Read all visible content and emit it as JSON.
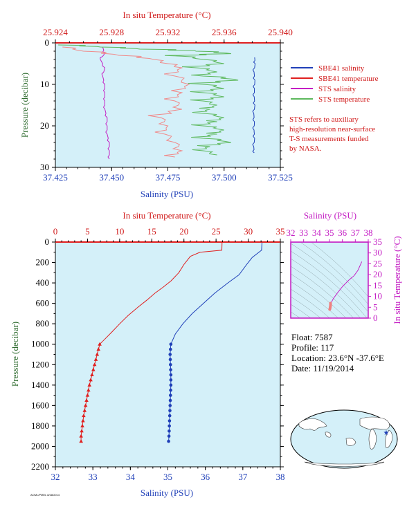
{
  "colors": {
    "salinity": "#1f3fb8",
    "temperature": "#e01f1f",
    "sts_salinity": "#c41fc4",
    "sts_temperature": "#5cb85c",
    "plot_bg": "#d4f0f9",
    "pressure_axis": "#2e6b2e",
    "red_text": "#d01818",
    "magenta_text": "#c41fc4",
    "blue_text": "#1f3fb8"
  },
  "legend": {
    "items": [
      {
        "label": "SBE41 salinity",
        "color": "#1f3fb8"
      },
      {
        "label": "SBE41 temperature",
        "color": "#e01f1f"
      },
      {
        "label": "STS salinity",
        "color": "#c41fc4"
      },
      {
        "label": "STS temperature",
        "color": "#5cb85c"
      }
    ],
    "note": [
      "STS refers to auxiliary",
      "high-resolution near-surface",
      "T-S measurements funded",
      "by NASA."
    ]
  },
  "info": {
    "float": "Float:  7587",
    "profile": "Profile:  117",
    "location": "Location:  23.6°N  -37.6°E",
    "date": "Date:  11/19/2014"
  },
  "footer": "AOML/PMEL 8/28/2014",
  "chart_data": [
    {
      "type": "line",
      "name": "near-surface",
      "top_axis_label": "In situ Temperature (°C)",
      "bottom_axis_label": "Salinity (PSU)",
      "y_axis_label": "Pressure (decibar)",
      "temp_ticks": [
        "25.924",
        "25.928",
        "25.932",
        "25.936",
        "25.940"
      ],
      "sal_ticks": [
        "37.425",
        "37.450",
        "37.475",
        "37.500",
        "37.525"
      ],
      "pres_ticks": [
        "0",
        "10",
        "20",
        "30"
      ],
      "temp_range": [
        25.924,
        25.94
      ],
      "sal_range": [
        37.425,
        37.525
      ],
      "pres_range": [
        0,
        30
      ],
      "series": [
        {
          "name": "SBE41 salinity",
          "color": "#1f3fb8",
          "axis": "salinity",
          "points": [
            [
              37.5136,
              3.5
            ],
            [
              37.5138,
              5
            ],
            [
              37.5133,
              7
            ],
            [
              37.5137,
              9
            ],
            [
              37.5135,
              11
            ],
            [
              37.5134,
              13
            ],
            [
              37.5137,
              15
            ],
            [
              37.5132,
              17
            ],
            [
              37.5135,
              19
            ],
            [
              37.5133,
              21
            ],
            [
              37.5136,
              23
            ],
            [
              37.5132,
              25
            ],
            [
              37.5134,
              26.5
            ]
          ]
        },
        {
          "name": "STS salinity",
          "color": "#c41fc4",
          "axis": "salinity",
          "points": [
            [
              37.446,
              1
            ],
            [
              37.447,
              2.5
            ],
            [
              37.445,
              4
            ],
            [
              37.447,
              6
            ],
            [
              37.446,
              8
            ],
            [
              37.447,
              10
            ],
            [
              37.447,
              12
            ],
            [
              37.447,
              14
            ],
            [
              37.447,
              16
            ],
            [
              37.448,
              18
            ],
            [
              37.448,
              20
            ],
            [
              37.448,
              22
            ],
            [
              37.449,
              24
            ],
            [
              37.449,
              26
            ],
            [
              37.449,
              28
            ]
          ]
        },
        {
          "name": "STS temperature",
          "color": "#5cb85c",
          "axis": "temperature",
          "points": [
            [
              25.9242,
              0.5
            ],
            [
              25.9272,
              1
            ],
            [
              25.93,
              1.5
            ],
            [
              25.934,
              2
            ],
            [
              25.9365,
              2.6
            ],
            [
              25.933,
              3.2
            ],
            [
              25.9345,
              4
            ],
            [
              25.936,
              5
            ],
            [
              25.934,
              6
            ],
            [
              25.9355,
              7
            ],
            [
              25.9345,
              8
            ],
            [
              25.937,
              9
            ],
            [
              25.9345,
              10
            ],
            [
              25.936,
              11
            ],
            [
              25.9345,
              12
            ],
            [
              25.936,
              13
            ],
            [
              25.9345,
              14
            ],
            [
              25.9355,
              15
            ],
            [
              25.935,
              16
            ],
            [
              25.9345,
              17
            ],
            [
              25.936,
              18
            ],
            [
              25.9355,
              19
            ],
            [
              25.9345,
              20
            ],
            [
              25.936,
              21
            ],
            [
              25.9355,
              22
            ],
            [
              25.9345,
              23
            ],
            [
              25.9365,
              24
            ],
            [
              25.935,
              25
            ],
            [
              25.9345,
              26
            ],
            [
              25.9355,
              27
            ]
          ]
        },
        {
          "name": "SBE41 temperature",
          "color": "#e01f1f",
          "axis": "temperature",
          "points": [
            [
              25.9245,
              1
            ],
            [
              25.926,
              2
            ],
            [
              25.9285,
              3
            ],
            [
              25.931,
              4
            ],
            [
              25.932,
              5
            ],
            [
              25.933,
              6
            ],
            [
              25.9325,
              8
            ],
            [
              25.9335,
              10
            ],
            [
              25.933,
              12
            ],
            [
              25.9325,
              14
            ],
            [
              25.933,
              16
            ],
            [
              25.9315,
              18
            ],
            [
              25.932,
              20
            ],
            [
              25.9318,
              22
            ],
            [
              25.9325,
              24
            ],
            [
              25.933,
              26
            ],
            [
              25.9325,
              27.5
            ]
          ]
        }
      ]
    },
    {
      "type": "line",
      "name": "full-profile",
      "top_axis_label": "In situ Temperature (°C)",
      "bottom_axis_label": "Salinity (PSU)",
      "y_axis_label": "Pressure (decibar)",
      "temp_ticks": [
        "0",
        "5",
        "10",
        "15",
        "20",
        "25",
        "30",
        "35"
      ],
      "sal_ticks": [
        "32",
        "33",
        "34",
        "35",
        "36",
        "37",
        "38"
      ],
      "pres_ticks": [
        "0",
        "200",
        "400",
        "600",
        "800",
        "1000",
        "1200",
        "1400",
        "1600",
        "1800",
        "2000",
        "2200"
      ],
      "temp_range": [
        0,
        35
      ],
      "sal_range": [
        32,
        38
      ],
      "pres_range": [
        0,
        2200
      ],
      "series": [
        {
          "name": "temperature",
          "color": "#e01f1f",
          "axis": "temperature",
          "points": [
            [
              25.93,
              5
            ],
            [
              25.9,
              80
            ],
            [
              22.5,
              100
            ],
            [
              21,
              140
            ],
            [
              20,
              220
            ],
            [
              19.2,
              300
            ],
            [
              18,
              380
            ],
            [
              16.8,
              440
            ],
            [
              15.5,
              500
            ],
            [
              14.2,
              570
            ],
            [
              12.8,
              640
            ],
            [
              11.3,
              720
            ],
            [
              10,
              800
            ],
            [
              8.8,
              880
            ],
            [
              7.7,
              950
            ],
            [
              6.9,
              1000
            ],
            [
              6.5,
              1100
            ],
            [
              6.1,
              1200
            ],
            [
              5.7,
              1300
            ],
            [
              5.3,
              1400
            ],
            [
              5,
              1500
            ],
            [
              4.7,
              1600
            ],
            [
              4.4,
              1700
            ],
            [
              4.2,
              1800
            ],
            [
              4,
              1900
            ],
            [
              4,
              1950
            ]
          ]
        },
        {
          "name": "salinity",
          "color": "#1f3fb8",
          "axis": "salinity",
          "points": [
            [
              37.51,
              5
            ],
            [
              37.5,
              80
            ],
            [
              37.25,
              150
            ],
            [
              37.1,
              220
            ],
            [
              36.9,
              320
            ],
            [
              36.6,
              400
            ],
            [
              36.25,
              500
            ],
            [
              35.95,
              600
            ],
            [
              35.65,
              700
            ],
            [
              35.4,
              800
            ],
            [
              35.2,
              900
            ],
            [
              35.08,
              1000
            ],
            [
              35.06,
              1100
            ],
            [
              35.07,
              1200
            ],
            [
              35.08,
              1300
            ],
            [
              35.08,
              1400
            ],
            [
              35.07,
              1500
            ],
            [
              35.06,
              1600
            ],
            [
              35.05,
              1700
            ],
            [
              35.04,
              1800
            ],
            [
              35.03,
              1900
            ],
            [
              35.02,
              1950
            ]
          ]
        }
      ],
      "markers": {
        "temperature": [
          [
            6.9,
            1000
          ],
          [
            6.7,
            1050
          ],
          [
            6.5,
            1100
          ],
          [
            6.3,
            1150
          ],
          [
            6.1,
            1200
          ],
          [
            5.9,
            1250
          ],
          [
            5.7,
            1300
          ],
          [
            5.5,
            1350
          ],
          [
            5.3,
            1400
          ],
          [
            5.15,
            1450
          ],
          [
            5,
            1500
          ],
          [
            4.85,
            1550
          ],
          [
            4.7,
            1600
          ],
          [
            4.55,
            1650
          ],
          [
            4.4,
            1700
          ],
          [
            4.3,
            1750
          ],
          [
            4.2,
            1800
          ],
          [
            4.1,
            1850
          ],
          [
            4,
            1900
          ],
          [
            4,
            1950
          ]
        ],
        "salinity": [
          [
            35.08,
            1000
          ],
          [
            35.07,
            1050
          ],
          [
            35.06,
            1100
          ],
          [
            35.065,
            1150
          ],
          [
            35.07,
            1200
          ],
          [
            35.075,
            1250
          ],
          [
            35.08,
            1300
          ],
          [
            35.08,
            1350
          ],
          [
            35.08,
            1400
          ],
          [
            35.075,
            1450
          ],
          [
            35.07,
            1500
          ],
          [
            35.065,
            1550
          ],
          [
            35.06,
            1600
          ],
          [
            35.055,
            1650
          ],
          [
            35.05,
            1700
          ],
          [
            35.045,
            1750
          ],
          [
            35.04,
            1800
          ],
          [
            35.035,
            1850
          ],
          [
            35.03,
            1900
          ],
          [
            35.02,
            1950
          ]
        ]
      }
    },
    {
      "type": "scatter",
      "name": "ts-diagram",
      "top_axis_label": "Salinity (PSU)",
      "right_axis_label": "In situ Temperature (°C)",
      "sal_ticks": [
        "32",
        "33",
        "34",
        "35",
        "36",
        "37",
        "38"
      ],
      "temp_ticks": [
        "0",
        "5",
        "10",
        "15",
        "20",
        "25",
        "30",
        "35"
      ],
      "sal_range": [
        32,
        38
      ],
      "temp_range": [
        0,
        35
      ],
      "series": [
        {
          "name": "T-S",
          "color": "#c41fc4",
          "points": [
            [
              35.02,
              4
            ],
            [
              35.05,
              4.8
            ],
            [
              35.08,
              6.5
            ],
            [
              35.3,
              9
            ],
            [
              35.6,
              11.5
            ],
            [
              36,
              14.5
            ],
            [
              36.5,
              17.5
            ],
            [
              36.9,
              19.5
            ],
            [
              37.2,
              22
            ],
            [
              37.5,
              26
            ]
          ]
        },
        {
          "name": "T-S deep",
          "color": "#f08080",
          "points": [
            [
              35.02,
              4
            ],
            [
              35.03,
              4.3
            ],
            [
              35.05,
              4.7
            ],
            [
              35.06,
              5.1
            ],
            [
              35.07,
              5.5
            ],
            [
              35.08,
              6
            ],
            [
              35.08,
              6.5
            ],
            [
              35.08,
              6.9
            ]
          ]
        }
      ]
    }
  ]
}
